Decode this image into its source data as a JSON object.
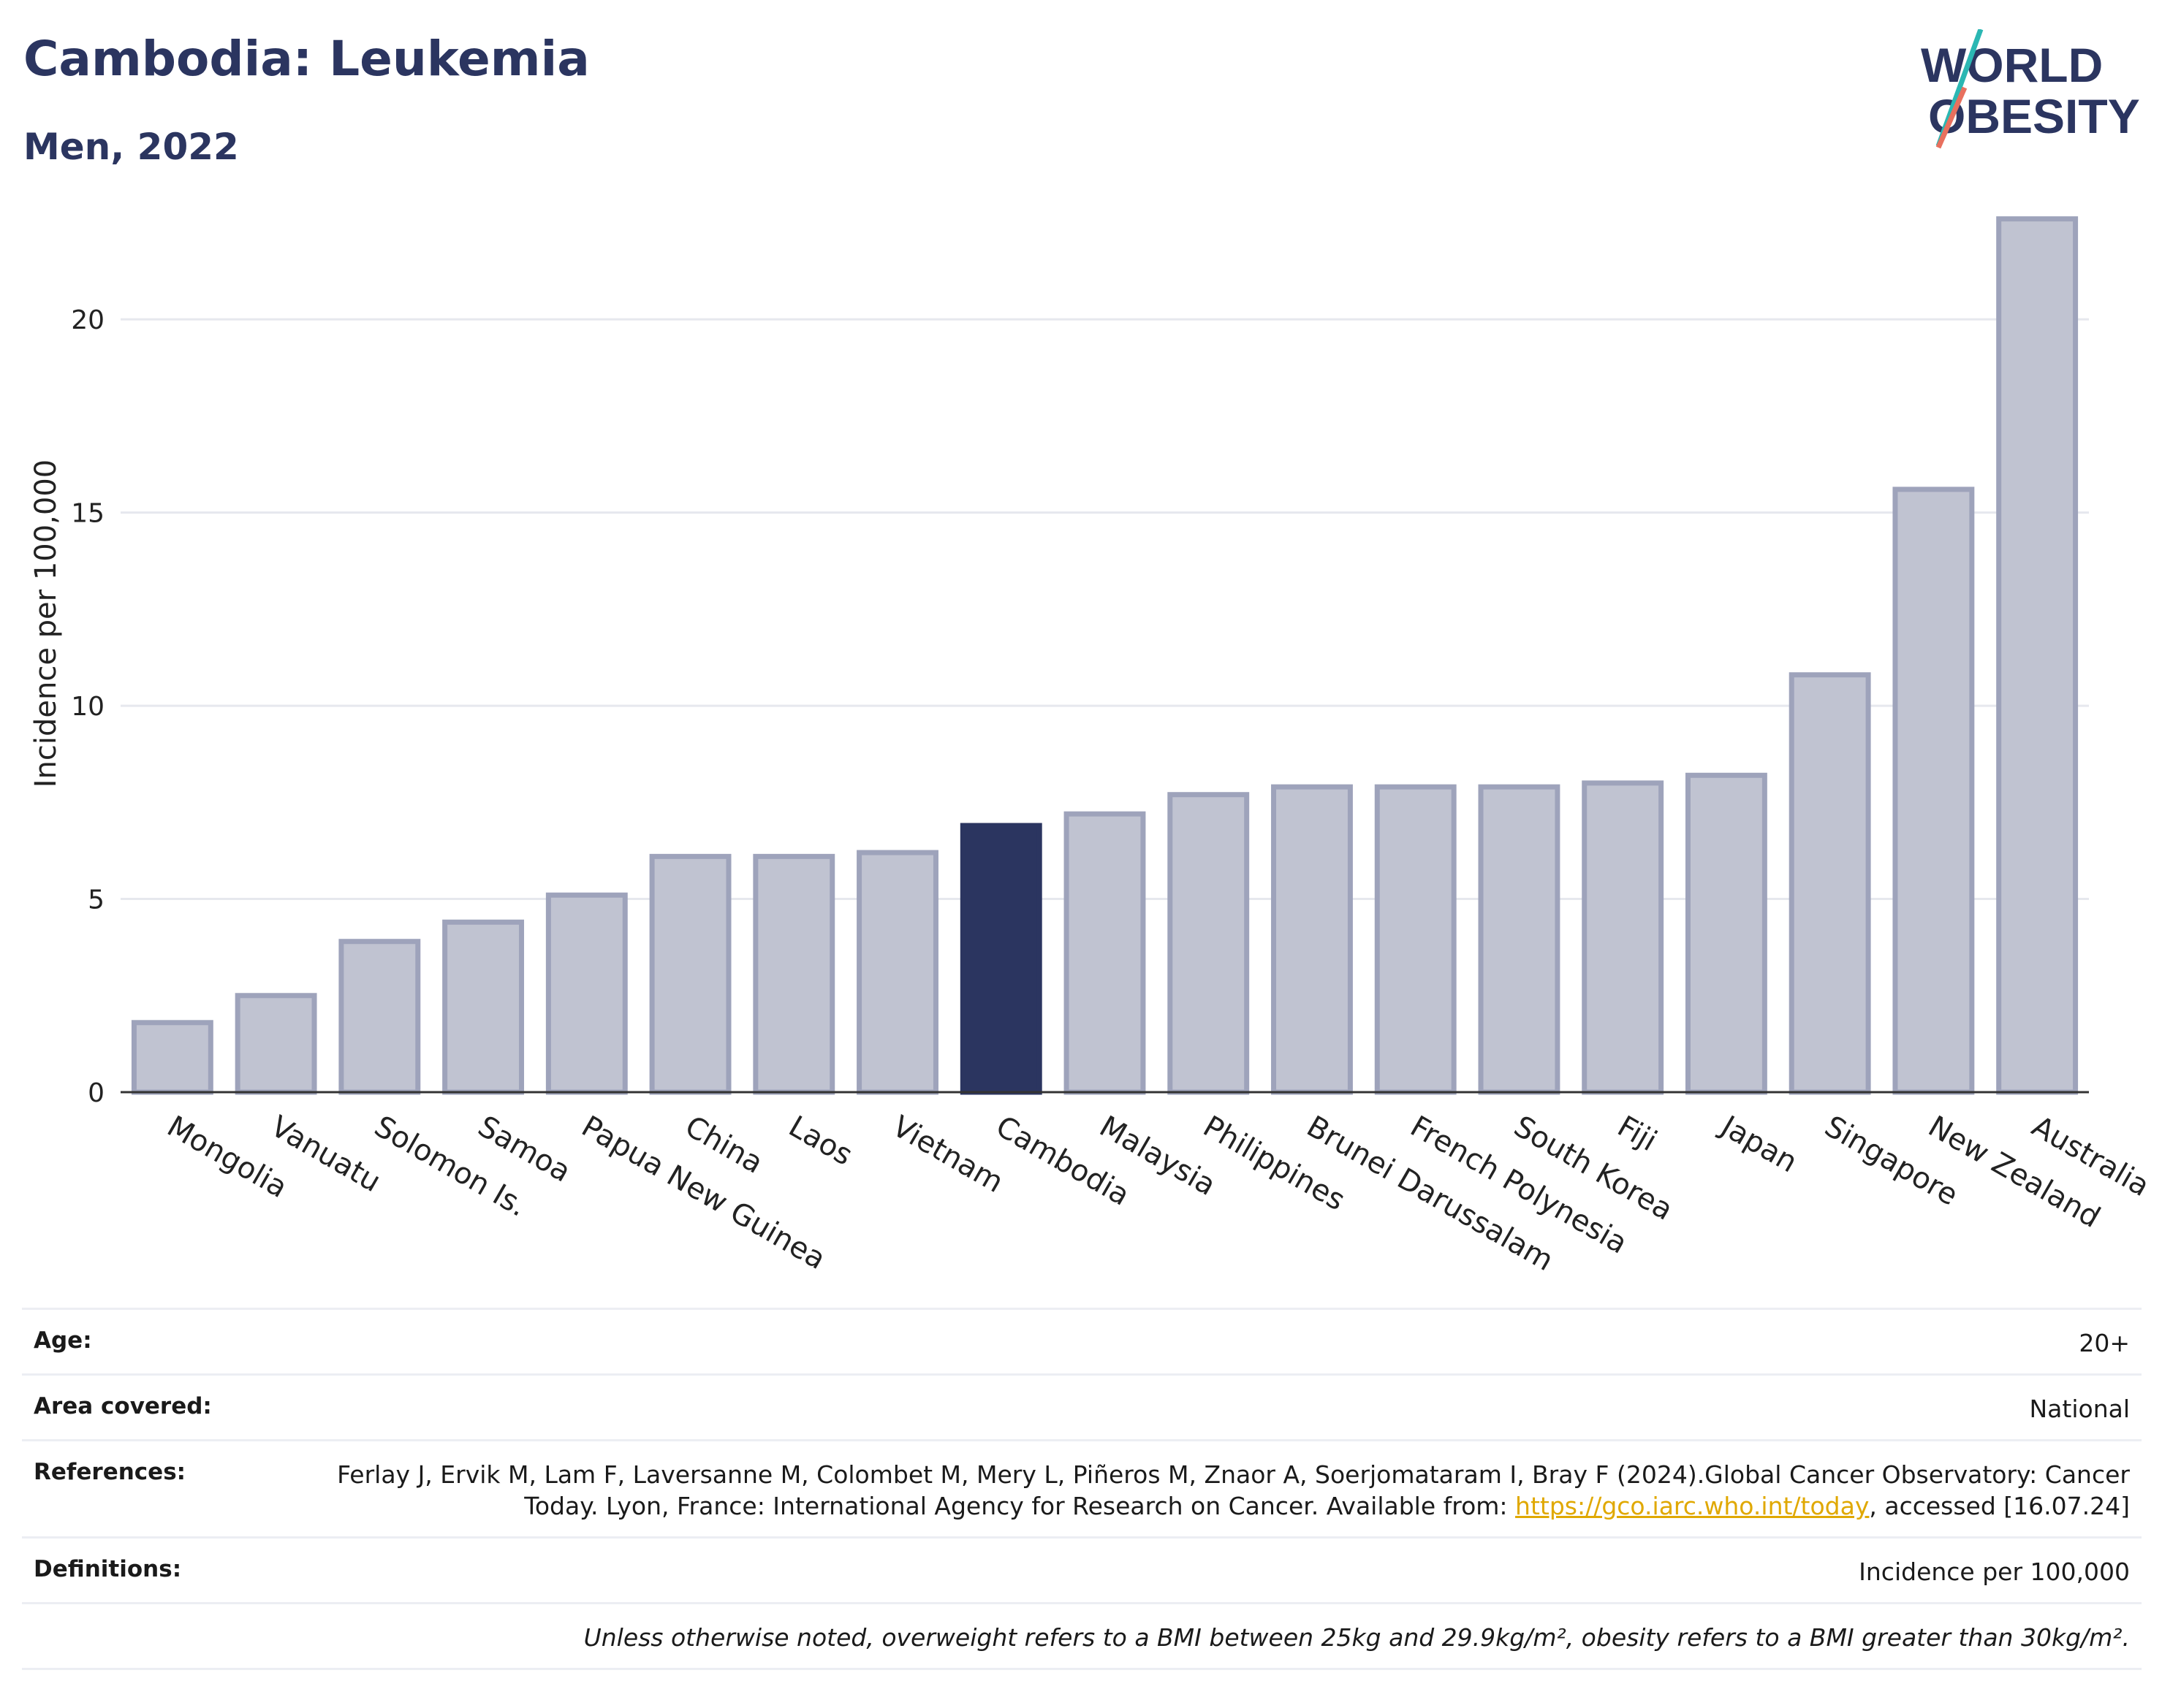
{
  "header": {
    "title": "Cambodia: Leukemia",
    "subtitle": "Men, 2022"
  },
  "logo": {
    "line1": "WORLD",
    "line2": "OBESITY"
  },
  "chart_data": {
    "type": "bar",
    "categories": [
      "Mongolia",
      "Vanuatu",
      "Solomon Is.",
      "Samoa",
      "Papua New Guinea",
      "China",
      "Laos",
      "Vietnam",
      "Cambodia",
      "Malaysia",
      "Philippines",
      "Brunei Darussalam",
      "French Polynesia",
      "South Korea",
      "Fiji",
      "Japan",
      "Singapore",
      "New Zealand",
      "Australia"
    ],
    "values": [
      1.8,
      2.5,
      3.9,
      4.4,
      5.1,
      6.1,
      6.1,
      6.2,
      6.9,
      7.2,
      7.7,
      7.9,
      7.9,
      7.9,
      8.0,
      8.2,
      10.8,
      15.6,
      22.6
    ],
    "highlight": "Cambodia",
    "ylabel": "Incidence per 100,000",
    "xlabel": "",
    "ylim": [
      0,
      23.5
    ],
    "yticks": [
      0,
      5,
      10,
      15,
      20
    ],
    "grid": true,
    "colors": {
      "bar": "#c0c3d1",
      "bar_border": "#9ea3bb",
      "highlight": "#2b3560"
    }
  },
  "meta": {
    "age_label": "Age:",
    "age_value": "20+",
    "area_label": "Area covered:",
    "area_value": "National",
    "ref_label": "References:",
    "ref_text_1": "Ferlay J, Ervik M, Lam F, Laversanne M, Colombet M, Mery L, Piñeros M, Znaor A, Soerjomataram I, Bray F (2024).Global Cancer Observatory: Cancer Today. Lyon, France: International Agency for Research on Cancer. Available from: ",
    "ref_link": "https://gco.iarc.who.int/today",
    "ref_text_2": ", accessed [16.07.24]",
    "def_label": "Definitions:",
    "def_value": "Incidence per 100,000",
    "note": "Unless otherwise noted, overweight refers to a BMI between 25kg and 29.9kg/m², obesity refers to a BMI greater than 30kg/m²."
  }
}
